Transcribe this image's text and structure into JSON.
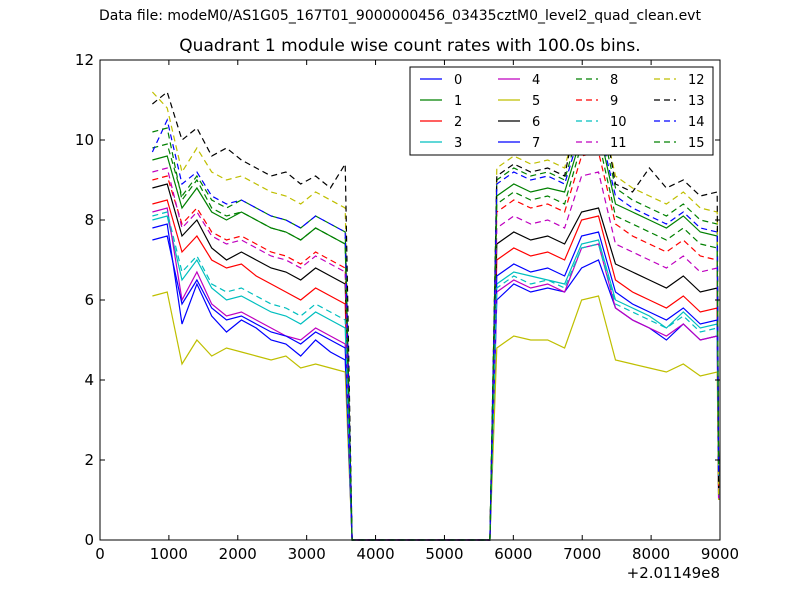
{
  "figure": {
    "suptitle": "Data file: modeM0/AS1G05_167T01_9000000456_03435cztM0_level2_quad_clean.evt",
    "title": "Quadrant 1 module wise count rates with 100.0s bins.",
    "offset_label": "+2.01149e8"
  },
  "chart_data": {
    "type": "line",
    "title": "Quadrant 1 module wise count rates with 100.0s bins.",
    "xlabel": "",
    "ylabel": "",
    "xlim": [
      0,
      9000
    ],
    "ylim": [
      0,
      12
    ],
    "x_offset": 201149000,
    "x_ticks": [
      0,
      1000,
      2000,
      3000,
      4000,
      5000,
      6000,
      7000,
      8000,
      9000
    ],
    "y_ticks": [
      0,
      2,
      4,
      6,
      8,
      10,
      12
    ],
    "x_tick_labels": [
      "0",
      "1000",
      "2000",
      "3000",
      "4000",
      "5000",
      "6000",
      "7000",
      "8000",
      "9000"
    ],
    "y_tick_labels": [
      "0",
      "2",
      "4",
      "6",
      "8",
      "10",
      "12"
    ],
    "legend_position": "top-right",
    "grid": false,
    "segments": [
      {
        "start": 760,
        "end": 3560
      },
      {
        "start": 5760,
        "end": 8960
      }
    ],
    "gap": {
      "start": 3660,
      "end": 5660
    },
    "series": [
      {
        "name": "0",
        "color": "#0000ff",
        "style": "solid",
        "seg1": [
          7.8,
          7.9,
          5.4,
          6.4,
          5.6,
          5.2,
          5.5,
          5.3,
          5.0,
          4.9,
          4.6,
          5.0,
          4.7,
          4.5
        ],
        "seg2": [
          6.0,
          6.4,
          6.2,
          6.3,
          6.2,
          6.8,
          7.0,
          5.8,
          5.5,
          5.3,
          5.0,
          5.4,
          5.0,
          5.1
        ]
      },
      {
        "name": "1",
        "color": "#008000",
        "style": "solid",
        "seg1": [
          9.5,
          9.6,
          8.3,
          8.8,
          8.2,
          8.0,
          8.2,
          8.0,
          7.8,
          7.7,
          7.5,
          7.8,
          7.6,
          7.4
        ],
        "seg2": [
          8.6,
          8.9,
          8.7,
          8.8,
          8.7,
          10.1,
          10.3,
          8.4,
          8.2,
          8.0,
          7.8,
          8.1,
          7.7,
          7.6
        ]
      },
      {
        "name": "2",
        "color": "#ff0000",
        "style": "solid",
        "seg1": [
          8.4,
          8.5,
          7.2,
          7.6,
          7.0,
          6.8,
          6.9,
          6.6,
          6.4,
          6.2,
          6.0,
          6.3,
          6.1,
          5.9
        ],
        "seg2": [
          7.0,
          7.3,
          7.1,
          7.2,
          7.0,
          8.0,
          8.1,
          6.5,
          6.2,
          6.0,
          5.8,
          6.1,
          5.7,
          5.8
        ]
      },
      {
        "name": "3",
        "color": "#00bfbf",
        "style": "solid",
        "seg1": [
          8.0,
          8.1,
          6.5,
          7.0,
          6.3,
          6.0,
          6.1,
          5.9,
          5.7,
          5.6,
          5.4,
          5.7,
          5.5,
          5.3
        ],
        "seg2": [
          6.4,
          6.7,
          6.6,
          6.5,
          6.4,
          7.4,
          7.5,
          6.0,
          5.8,
          5.6,
          5.3,
          5.7,
          5.3,
          5.4
        ]
      },
      {
        "name": "4",
        "color": "#bf00bf",
        "style": "solid",
        "seg1": [
          8.2,
          8.3,
          6.0,
          6.7,
          5.9,
          5.6,
          5.7,
          5.5,
          5.3,
          5.1,
          5.0,
          5.3,
          5.1,
          4.9
        ],
        "seg2": [
          6.2,
          6.5,
          6.3,
          6.4,
          6.2,
          7.3,
          7.4,
          5.8,
          5.5,
          5.3,
          5.1,
          5.4,
          5.0,
          5.1
        ]
      },
      {
        "name": "5",
        "color": "#bfbf00",
        "style": "solid",
        "seg1": [
          6.1,
          6.2,
          4.4,
          5.0,
          4.6,
          4.8,
          4.7,
          4.6,
          4.5,
          4.6,
          4.3,
          4.4,
          4.3,
          4.2
        ],
        "seg2": [
          4.8,
          5.1,
          5.0,
          5.0,
          4.8,
          6.0,
          6.1,
          4.5,
          4.4,
          4.3,
          4.2,
          4.4,
          4.1,
          4.2
        ]
      },
      {
        "name": "6",
        "color": "#000000",
        "style": "solid",
        "seg1": [
          8.8,
          8.9,
          7.6,
          8.0,
          7.3,
          7.0,
          7.2,
          7.0,
          6.8,
          6.7,
          6.5,
          6.8,
          6.6,
          6.4
        ],
        "seg2": [
          7.4,
          7.7,
          7.5,
          7.6,
          7.4,
          8.2,
          8.3,
          6.9,
          6.7,
          6.5,
          6.3,
          6.6,
          6.2,
          6.3
        ]
      },
      {
        "name": "7",
        "color": "#0000ff",
        "style": "solid",
        "seg1": [
          7.5,
          7.6,
          5.9,
          6.5,
          5.8,
          5.5,
          5.6,
          5.4,
          5.2,
          5.1,
          4.9,
          5.2,
          5.0,
          4.8
        ],
        "seg2": [
          6.6,
          6.9,
          6.7,
          6.8,
          6.6,
          7.6,
          7.7,
          6.2,
          5.9,
          5.7,
          5.5,
          5.8,
          5.4,
          5.5
        ]
      },
      {
        "name": "8",
        "color": "#008000",
        "style": "dashed",
        "seg1": [
          9.8,
          9.9,
          8.6,
          9.1,
          8.5,
          8.3,
          8.5,
          8.3,
          8.1,
          8.0,
          7.8,
          8.1,
          7.9,
          7.7
        ],
        "seg2": [
          9.0,
          9.3,
          9.1,
          9.2,
          9.0,
          10.5,
          10.7,
          8.8,
          8.5,
          8.3,
          8.1,
          8.4,
          8.0,
          7.9
        ]
      },
      {
        "name": "9",
        "color": "#ff0000",
        "style": "dashed",
        "seg1": [
          9.0,
          9.1,
          7.9,
          8.3,
          7.7,
          7.5,
          7.6,
          7.4,
          7.2,
          7.1,
          6.9,
          7.2,
          7.0,
          6.8
        ],
        "seg2": [
          8.2,
          8.5,
          8.3,
          8.4,
          8.2,
          9.6,
          9.7,
          7.9,
          7.6,
          7.4,
          7.2,
          7.5,
          7.1,
          7.0
        ]
      },
      {
        "name": "10",
        "color": "#00bfbf",
        "style": "dashed",
        "seg1": [
          8.1,
          8.2,
          6.7,
          7.1,
          6.4,
          6.2,
          6.3,
          6.1,
          5.9,
          5.8,
          5.6,
          5.9,
          5.7,
          5.5
        ],
        "seg2": [
          6.3,
          6.6,
          6.4,
          6.5,
          6.3,
          7.3,
          7.4,
          5.9,
          5.7,
          5.5,
          5.3,
          5.6,
          5.2,
          5.3
        ]
      },
      {
        "name": "11",
        "color": "#bf00bf",
        "style": "dashed",
        "seg1": [
          9.2,
          9.3,
          7.8,
          8.2,
          7.6,
          7.4,
          7.5,
          7.3,
          7.1,
          7.0,
          6.8,
          7.1,
          6.9,
          6.7
        ],
        "seg2": [
          7.8,
          8.1,
          7.9,
          8.0,
          7.8,
          9.1,
          9.2,
          7.4,
          7.2,
          7.0,
          6.8,
          7.1,
          6.7,
          6.8
        ]
      },
      {
        "name": "12",
        "color": "#bfbf00",
        "style": "dashed",
        "seg1": [
          11.2,
          10.8,
          9.2,
          9.8,
          9.2,
          9.0,
          9.1,
          8.9,
          8.7,
          8.6,
          8.4,
          8.7,
          8.5,
          8.3
        ],
        "seg2": [
          9.3,
          9.6,
          9.4,
          9.5,
          9.3,
          10.9,
          11.0,
          9.1,
          8.8,
          8.6,
          8.4,
          8.7,
          8.3,
          8.2
        ]
      },
      {
        "name": "13",
        "color": "#000000",
        "style": "dashed",
        "seg1": [
          10.9,
          11.2,
          10.0,
          10.3,
          9.6,
          9.8,
          9.5,
          9.3,
          9.1,
          9.2,
          8.9,
          9.1,
          8.8,
          9.4
        ],
        "seg2": [
          9.1,
          9.4,
          9.2,
          9.3,
          9.1,
          11.2,
          11.3,
          8.9,
          8.7,
          9.3,
          8.8,
          9.0,
          8.6,
          8.7
        ]
      },
      {
        "name": "14",
        "color": "#0000ff",
        "style": "dashed",
        "seg1": [
          9.7,
          10.5,
          8.9,
          9.2,
          8.6,
          8.4,
          8.5,
          8.3,
          8.1,
          8.0,
          7.8,
          8.1,
          7.9,
          7.7
        ],
        "seg2": [
          8.9,
          9.2,
          9.0,
          9.1,
          8.9,
          10.3,
          10.4,
          8.6,
          8.3,
          8.1,
          7.9,
          8.2,
          7.8,
          7.7
        ]
      },
      {
        "name": "15",
        "color": "#008000",
        "style": "dashed",
        "seg1": [
          10.2,
          10.3,
          8.5,
          9.0,
          8.3,
          8.1,
          8.2,
          8.0,
          7.8,
          7.7,
          7.5,
          7.8,
          7.6,
          7.4
        ],
        "seg2": [
          8.4,
          8.7,
          8.5,
          8.6,
          8.4,
          9.9,
          10.0,
          8.1,
          7.9,
          7.7,
          7.5,
          7.8,
          7.4,
          7.3
        ]
      }
    ]
  }
}
